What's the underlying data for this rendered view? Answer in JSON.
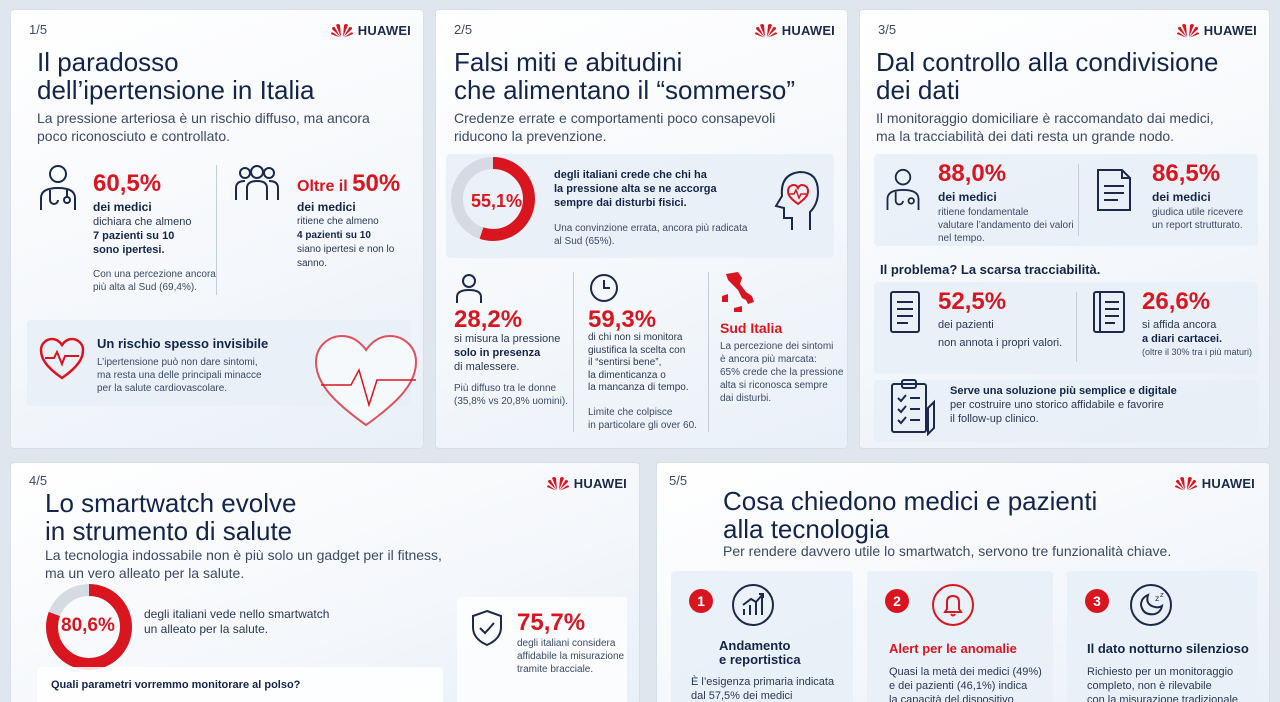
{
  "brand": "HUAWEI",
  "colors": {
    "accent": "#d9161f",
    "navy": "#14254a"
  },
  "card1": {
    "num": "1/5",
    "title": [
      "Il paradosso",
      "dell’ipertensione in Italia"
    ],
    "subtitle": [
      "La pressione arteriosa è un rischio diffuso, ma ancora",
      "poco riconosciuto e controllato."
    ],
    "stat1": {
      "value": "60,5%",
      "label": "dei medici",
      "lines": [
        "dichiara che almeno",
        "7 pazienti su 10",
        "sono ipertesi."
      ],
      "note": [
        "Con una percezione ancora",
        "più alta al Sud (69,4%)."
      ]
    },
    "stat2": {
      "prefix": "Oltre il",
      "value": "50%",
      "label": "dei medici",
      "lines": [
        "ritiene che almeno",
        "4 pazienti su 10",
        "siano ipertesi e non lo sanno."
      ]
    },
    "risk": {
      "title": "Un rischio spesso invisibile",
      "lines": [
        "L’ipertensione può non dare sintomi,",
        "ma resta una delle principali minacce",
        "per la salute cardiovascolare."
      ]
    }
  },
  "card2": {
    "num": "2/5",
    "title": [
      "Falsi miti e abitudini",
      "che alimentano il “sommerso”"
    ],
    "subtitle": [
      "Credenze errate e comportamenti poco consapevoli",
      "riducono la prevenzione."
    ],
    "donut": {
      "value": "55,1%",
      "fraction": 0.551,
      "lines": [
        "degli italiani crede che chi ha",
        "la pressione alta se ne accorga",
        "sempre dai disturbi fisici."
      ],
      "note": [
        "Una convinzione errata, ancora più radicata",
        "al Sud (65%)."
      ]
    },
    "s1": {
      "value": "28,2%",
      "lines": [
        "si misura la pressione",
        "solo in presenza",
        "di malessere."
      ],
      "note": [
        "Più diffuso tra le donne",
        "(35,8% vs 20,8% uomini)."
      ]
    },
    "s2": {
      "value": "59,3%",
      "lines": [
        "di chi non si monitora",
        "giustifica la scelta con",
        "il “sentirsi bene”,",
        "la dimenticanza o",
        "la mancanza di tempo."
      ],
      "note": [
        "Limite che colpisce",
        "in particolare gli over 60."
      ]
    },
    "s3": {
      "title": "Sud Italia",
      "lines": [
        "La percezione dei sintomi",
        "è ancora più marcata:",
        "65% crede che la pressione",
        "alta si riconosca sempre",
        "dai disturbi."
      ]
    }
  },
  "card3": {
    "num": "3/5",
    "title": [
      "Dal controllo alla condivisione",
      "dei dati"
    ],
    "subtitle": [
      "Il monitoraggio domiciliare è raccomandato dai medici,",
      "ma la tracciabilità dei dati resta un grande nodo."
    ],
    "a": {
      "value": "88,0%",
      "label": "dei medici",
      "lines": [
        "ritiene fondamentale",
        "valutare l’andamento dei valori",
        "nel tempo."
      ]
    },
    "b": {
      "value": "86,5%",
      "label": "dei medici",
      "lines": [
        "giudica utile ricevere",
        "un report strutturato."
      ]
    },
    "problem": "Il problema? La scarsa tracciabilità.",
    "c": {
      "value": "52,5%",
      "label": "dei pazienti",
      "lines": [
        "non annota i propri valori."
      ]
    },
    "d": {
      "value": "26,6%",
      "lines": [
        "si affida ancora",
        "a diari cartacei."
      ],
      "note": "(oltre il 30% tra i più maturi)"
    },
    "solution": [
      "Serve una soluzione più semplice e digitale",
      "per costruire uno storico affidabile e favorire",
      "il follow-up clinico."
    ]
  },
  "card4": {
    "num": "4/5",
    "title": [
      "Lo smartwatch evolve",
      "in strumento di salute"
    ],
    "subtitle": [
      "La tecnologia indossabile non è più solo un gadget per il fitness,",
      "ma un vero alleato per la salute."
    ],
    "donut": {
      "value": "80,6%",
      "fraction": 0.806,
      "lines": [
        "degli italiani vede nello smartwatch",
        "un alleato per la salute."
      ]
    },
    "trust": {
      "value": "75,7%",
      "lines": [
        "degli italiani considera",
        "affidabile la misurazione",
        "tramite bracciale."
      ]
    },
    "question": "Quali parametri vorremmo monitorare al polso?"
  },
  "card5": {
    "num": "5/5",
    "title": [
      "Cosa chiedono medici e pazienti",
      "alla tecnologia"
    ],
    "subtitle": "Per rendere davvero utile lo smartwatch, servono tre funzionalità chiave.",
    "f1": {
      "n": "1",
      "title": [
        "Andamento",
        "e reportistica"
      ],
      "lines": [
        "È l’esigenza primaria indicata",
        "dal 57,5% dei medici"
      ]
    },
    "f2": {
      "n": "2",
      "title": [
        "Alert per le anomalie"
      ],
      "lines": [
        "Quasi la metà dei medici (49%)",
        "e dei pazienti (46,1%) indica",
        "la capacità del dispositivo"
      ]
    },
    "f3": {
      "n": "3",
      "title": [
        "Il dato notturno silenzioso"
      ],
      "lines": [
        "Richiesto per un monitoraggio",
        "completo, non è rilevabile",
        "con la misurazione tradizionale"
      ]
    }
  }
}
